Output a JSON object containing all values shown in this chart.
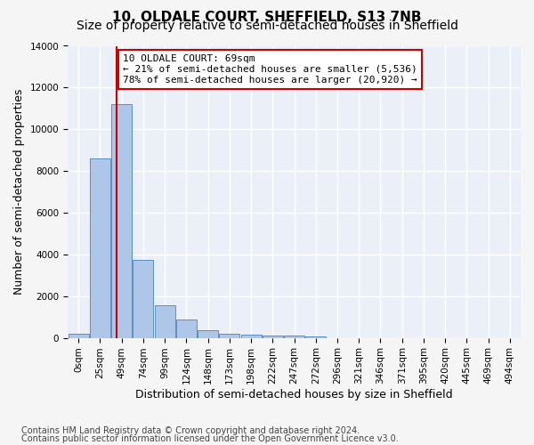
{
  "title": "10, OLDALE COURT, SHEFFIELD, S13 7NB",
  "subtitle": "Size of property relative to semi-detached houses in Sheffield",
  "xlabel": "Distribution of semi-detached houses by size in Sheffield",
  "ylabel": "Number of semi-detached properties",
  "footnote1": "Contains HM Land Registry data © Crown copyright and database right 2024.",
  "footnote2": "Contains public sector information licensed under the Open Government Licence v3.0.",
  "annotation_line1": "10 OLDALE COURT: 69sqm",
  "annotation_line2": "← 21% of semi-detached houses are smaller (5,536)",
  "annotation_line3": "78% of semi-detached houses are larger (20,920) →",
  "bin_labels": [
    "0sqm",
    "25sqm",
    "49sqm",
    "74sqm",
    "99sqm",
    "124sqm",
    "148sqm",
    "173sqm",
    "198sqm",
    "222sqm",
    "247sqm",
    "272sqm",
    "296sqm",
    "321sqm",
    "346sqm",
    "371sqm",
    "395sqm",
    "420sqm",
    "445sqm",
    "469sqm",
    "494sqm"
  ],
  "bar_values": [
    200,
    8600,
    11200,
    3750,
    1550,
    900,
    350,
    200,
    150,
    100,
    100,
    50,
    0,
    0,
    0,
    0,
    0,
    0,
    0,
    0,
    0
  ],
  "bar_color": "#aec6e8",
  "bar_edge_color": "#5a8fc0",
  "red_line_x": 1.76,
  "ylim": [
    0,
    14000
  ],
  "yticks": [
    0,
    2000,
    4000,
    6000,
    8000,
    10000,
    12000,
    14000
  ],
  "background_color": "#eaeff8",
  "grid_color": "#ffffff",
  "annotation_box_color": "#ffffff",
  "annotation_box_edge_color": "#cc0000",
  "red_line_color": "#cc0000",
  "title_fontsize": 11,
  "subtitle_fontsize": 10,
  "axis_label_fontsize": 9,
  "tick_fontsize": 7.5,
  "annotation_fontsize": 8,
  "footnote_fontsize": 7
}
